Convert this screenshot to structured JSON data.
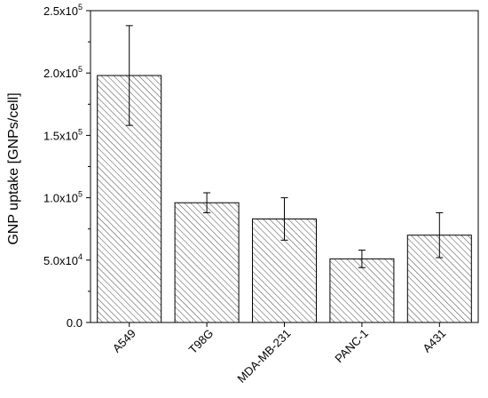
{
  "chart_data": {
    "type": "bar",
    "title": "",
    "xlabel": "",
    "ylabel": "GNP uptake [GNPs/cell]",
    "categories": [
      "A549",
      "T98G",
      "MDA-MB-231",
      "PANC-1",
      "A431"
    ],
    "values": [
      198000,
      96000,
      83000,
      51000,
      70000
    ],
    "errors": [
      40000,
      8000,
      17000,
      7000,
      18000
    ],
    "ylim": [
      0,
      250000
    ],
    "yticks": [
      {
        "value": 0,
        "mantissa": "0.0",
        "exp": ""
      },
      {
        "value": 50000,
        "mantissa": "5.0x10",
        "exp": "4"
      },
      {
        "value": 100000,
        "mantissa": "1.0x10",
        "exp": "5"
      },
      {
        "value": 150000,
        "mantissa": "1.5x10",
        "exp": "5"
      },
      {
        "value": 200000,
        "mantissa": "2.0x10",
        "exp": "5"
      },
      {
        "value": 250000,
        "mantissa": "2.5x10",
        "exp": "5"
      }
    ],
    "bar_pattern": "diagonal-hatch",
    "bar_color": "#555555",
    "grid": false,
    "legend": "none"
  }
}
